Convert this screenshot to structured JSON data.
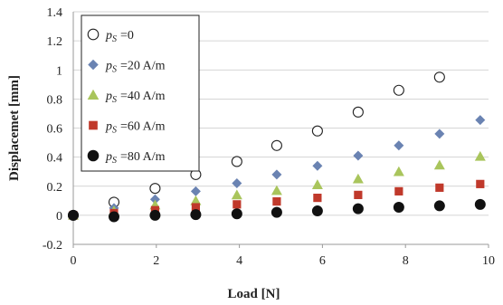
{
  "chart_data": {
    "type": "scatter",
    "title": "",
    "xlabel": "Load [N]",
    "ylabel": "Displacemet [mm]",
    "xlim": [
      0,
      10
    ],
    "ylim": [
      -0.2,
      1.4
    ],
    "x_ticks": [
      "0",
      "2",
      "4",
      "6",
      "8",
      "10"
    ],
    "y_ticks": [
      "-0.2",
      "0",
      "0.2",
      "0.4",
      "0.6",
      "0.8",
      "1",
      "1.2",
      "1.4"
    ],
    "grid": "horizontal",
    "legend_position": "top-left",
    "series": [
      {
        "name": "ps=0",
        "legend_symbol": "p",
        "legend_subscript": "S",
        "legend_value": "=0",
        "marker": "circle-open",
        "color": "#222222",
        "x": [
          0,
          0.98,
          1.97,
          2.95,
          3.94,
          4.9,
          5.88,
          6.86,
          7.84,
          8.82
        ],
        "y": [
          0,
          0.09,
          0.185,
          0.28,
          0.37,
          0.48,
          0.58,
          0.71,
          0.86,
          0.95
        ]
      },
      {
        "name": "ps=20 A/m",
        "legend_symbol": "p",
        "legend_subscript": "S",
        "legend_value": "=20 A/m",
        "marker": "diamond",
        "color": "#6a83b2",
        "x": [
          0,
          0.98,
          1.97,
          2.95,
          3.94,
          4.9,
          5.88,
          6.86,
          7.84,
          8.82,
          9.8
        ],
        "y": [
          0,
          0.05,
          0.11,
          0.165,
          0.22,
          0.28,
          0.34,
          0.41,
          0.48,
          0.56,
          0.655
        ]
      },
      {
        "name": "ps=40 A/m",
        "legend_symbol": "p",
        "legend_subscript": "S",
        "legend_value": "=40 A/m",
        "marker": "triangle",
        "color": "#a9c55c",
        "x": [
          0,
          0.98,
          1.97,
          2.95,
          3.94,
          4.9,
          5.88,
          6.86,
          7.84,
          8.82,
          9.8
        ],
        "y": [
          0,
          0.03,
          0.07,
          0.1,
          0.14,
          0.17,
          0.21,
          0.25,
          0.3,
          0.345,
          0.405
        ]
      },
      {
        "name": "ps=60 A/m",
        "legend_symbol": "p",
        "legend_subscript": "S",
        "legend_value": "=60 A/m",
        "marker": "square",
        "color": "#c0392b",
        "x": [
          0,
          0.98,
          1.97,
          2.95,
          3.94,
          4.9,
          5.88,
          6.86,
          7.84,
          8.82,
          9.8
        ],
        "y": [
          0,
          0.015,
          0.035,
          0.055,
          0.075,
          0.095,
          0.12,
          0.14,
          0.165,
          0.19,
          0.215
        ]
      },
      {
        "name": "ps=80 A/m",
        "legend_symbol": "p",
        "legend_subscript": "S",
        "legend_value": "=80 A/m",
        "marker": "circle-filled",
        "color": "#111111",
        "x": [
          0,
          0.98,
          1.97,
          2.95,
          3.94,
          4.9,
          5.88,
          6.86,
          7.84,
          8.82,
          9.8
        ],
        "y": [
          0,
          -0.01,
          0.0,
          0.005,
          0.01,
          0.02,
          0.03,
          0.045,
          0.055,
          0.065,
          0.075
        ]
      }
    ]
  }
}
